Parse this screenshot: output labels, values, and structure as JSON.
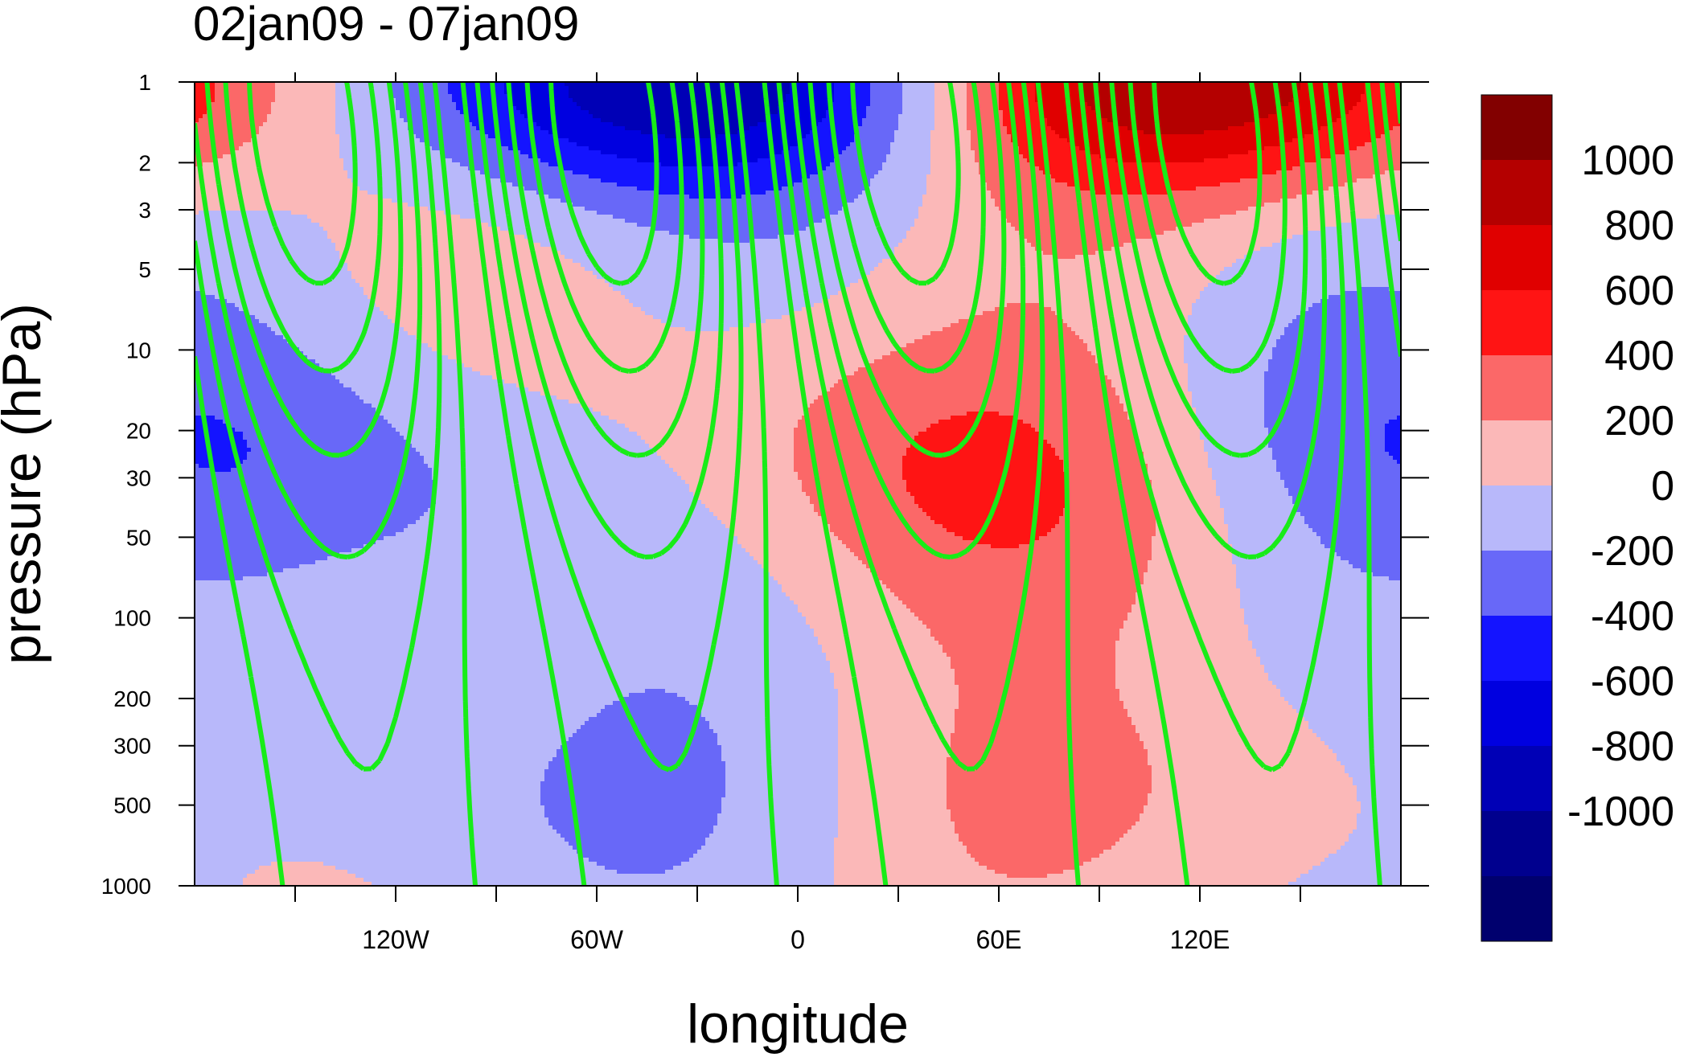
{
  "colors": {
    "levels": [
      "#00006e",
      "#00008e",
      "#0000b6",
      "#0000e0",
      "#1414ff",
      "#6868f8",
      "#b8b8fa",
      "#fbb8b8",
      "#fb6868",
      "#ff1414",
      "#e00000",
      "#b40000",
      "#820000"
    ],
    "contour": "#18ec18"
  },
  "chart_data": {
    "type": "heatmap",
    "title": "02jan09 - 07jan09",
    "xlabel": "longitude",
    "ylabel": "pressure (hPa)",
    "x_range": [
      -180,
      180
    ],
    "y_range": [
      1000,
      1
    ],
    "y_scale": "log",
    "x_ticks": [
      {
        "value": -120,
        "label": "120W"
      },
      {
        "value": -60,
        "label": "60W"
      },
      {
        "value": 0,
        "label": "0"
      },
      {
        "value": 60,
        "label": "60E"
      },
      {
        "value": 120,
        "label": "120E"
      }
    ],
    "y_ticks": [
      {
        "value": 1,
        "label": "1"
      },
      {
        "value": 2,
        "label": "2"
      },
      {
        "value": 3,
        "label": "3"
      },
      {
        "value": 5,
        "label": "5"
      },
      {
        "value": 10,
        "label": "10"
      },
      {
        "value": 20,
        "label": "20"
      },
      {
        "value": 30,
        "label": "30"
      },
      {
        "value": 50,
        "label": "50"
      },
      {
        "value": 100,
        "label": "100"
      },
      {
        "value": 200,
        "label": "200"
      },
      {
        "value": 300,
        "label": "300"
      },
      {
        "value": 500,
        "label": "500"
      },
      {
        "value": 1000,
        "label": "1000"
      }
    ],
    "colorbar_labels": [
      "1000",
      "800",
      "600",
      "400",
      "200",
      "0",
      "-200",
      "-400",
      "-600",
      "-800",
      "-1000"
    ],
    "contour_levels": [
      -1200,
      -1000,
      -800,
      -600,
      -400,
      -200,
      0,
      200,
      400,
      600,
      800,
      1000,
      1200
    ],
    "grid": false,
    "overlay": "green line contours (solid positive, dashed negative)"
  }
}
